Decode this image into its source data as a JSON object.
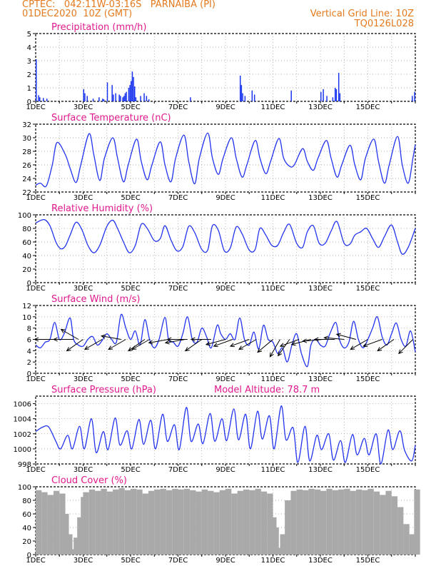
{
  "header": {
    "line1": "CPTEC:   042:11W-03:16S   PARNAIBA (PI)",
    "line2": "01DEC2020  10Z (GMT)",
    "grid_note": "Vertical Grid Line: 10Z",
    "run_id": "TQ0126L028",
    "model_altitude": "Model Altitude: 78.7  m"
  },
  "colors": {
    "header": "#e37a1e",
    "title": "#e0198c",
    "series": "#2233ee",
    "bar": "#1a35f0",
    "cloud": "#a9a9a9",
    "axis": "#000000",
    "grid": "#9a9a9a"
  },
  "chart_data": [
    {
      "type": "bar",
      "title": "Precipitation (mm/h)",
      "ylim": [
        0,
        5
      ],
      "yticks": [
        0,
        1,
        2,
        3,
        4,
        5
      ],
      "xticks": [
        "1DEC",
        "3DEC",
        "5DEC",
        "7DEC",
        "9DEC",
        "11DEC",
        "13DEC",
        "15DEC"
      ],
      "grid": true,
      "series": [
        {
          "x": [
            0.0,
            0.1,
            0.15,
            0.3,
            0.45,
            2.0,
            2.05,
            2.15,
            2.4,
            2.65,
            2.8,
            2.85,
            3.0,
            3.2,
            3.25,
            3.35,
            3.5,
            3.55,
            3.65,
            3.7,
            3.75,
            3.8,
            3.9,
            3.95,
            4.0,
            4.05,
            4.1,
            4.15,
            4.2,
            4.4,
            4.55,
            4.65,
            4.75,
            6.5,
            8.6,
            8.65,
            8.7,
            8.8,
            9.1,
            9.2,
            10.75,
            12.0,
            12.1,
            12.25,
            12.5,
            12.6,
            12.65,
            12.75,
            12.8,
            15.85,
            15.95
          ],
          "values": [
            3.1,
            0.45,
            0.3,
            0.25,
            0.2,
            0.9,
            0.6,
            0.4,
            0.2,
            0.3,
            0.2,
            0.15,
            1.4,
            1.2,
            0.5,
            0.6,
            0.5,
            0.4,
            0.3,
            0.4,
            0.6,
            0.7,
            1.0,
            1.2,
            1.5,
            2.2,
            1.8,
            1.1,
            0.3,
            0.4,
            0.6,
            0.4,
            0.15,
            0.3,
            1.9,
            1.2,
            0.6,
            0.4,
            0.8,
            0.5,
            0.8,
            0.7,
            0.9,
            0.4,
            0.3,
            1.0,
            0.9,
            2.1,
            0.6,
            0.4,
            0.7
          ]
        }
      ]
    },
    {
      "type": "line",
      "title": "Surface Temperature (nC)",
      "ylim": [
        22,
        32
      ],
      "yticks": [
        22,
        24,
        26,
        28,
        30,
        32
      ],
      "xticks": [
        "1DEC",
        "3DEC",
        "5DEC",
        "7DEC",
        "9DEC",
        "11DEC",
        "13DEC",
        "15DEC"
      ],
      "grid": true,
      "series": [
        {
          "x": [
            0.0,
            0.2,
            0.45,
            0.7,
            0.9,
            1.25,
            1.45,
            1.7,
            1.9,
            2.25,
            2.45,
            2.7,
            2.9,
            3.25,
            3.45,
            3.7,
            3.9,
            4.25,
            4.45,
            4.7,
            4.9,
            5.25,
            5.45,
            5.7,
            5.9,
            6.25,
            6.45,
            6.7,
            6.9,
            7.25,
            7.45,
            7.7,
            7.9,
            8.25,
            8.45,
            8.7,
            8.9,
            9.25,
            9.45,
            9.7,
            9.9,
            10.25,
            10.45,
            10.7,
            10.9,
            11.25,
            11.45,
            11.7,
            11.9,
            12.25,
            12.45,
            12.7,
            12.9,
            13.25,
            13.45,
            13.7,
            13.9,
            14.25,
            14.45,
            14.7,
            14.9,
            15.25,
            15.45,
            15.7,
            15.9,
            16.0
          ],
          "values": [
            23.0,
            23.3,
            22.9,
            26.0,
            29.3,
            27.5,
            25.5,
            23.4,
            26.0,
            30.6,
            27.5,
            23.7,
            27.0,
            30.0,
            27.0,
            23.5,
            26.0,
            29.8,
            26.5,
            23.8,
            26.0,
            29.4,
            26.0,
            23.5,
            27.0,
            30.4,
            26.5,
            23.2,
            27.0,
            30.7,
            27.0,
            24.6,
            27.0,
            30.0,
            27.0,
            24.2,
            26.0,
            29.6,
            27.0,
            24.7,
            26.5,
            29.9,
            27.0,
            25.8,
            26.0,
            28.4,
            26.5,
            25.2,
            27.0,
            29.6,
            27.0,
            24.2,
            26.0,
            28.9,
            26.0,
            23.8,
            27.0,
            29.8,
            26.5,
            23.3,
            26.0,
            30.2,
            26.0,
            23.3,
            27.0,
            29.0
          ]
        }
      ]
    },
    {
      "type": "line",
      "title": "Relative Humidity (%)",
      "ylim": [
        0,
        100
      ],
      "yticks": [
        0,
        20,
        40,
        60,
        80,
        100
      ],
      "xticks": [
        "1DEC",
        "3DEC",
        "5DEC",
        "7DEC",
        "9DEC",
        "11DEC",
        "13DEC",
        "15DEC"
      ],
      "grid": true,
      "series": [
        {
          "x": [
            0.0,
            0.35,
            0.6,
            0.85,
            1.05,
            1.25,
            1.45,
            1.7,
            1.95,
            2.2,
            2.45,
            2.7,
            3.0,
            3.25,
            3.45,
            3.7,
            3.95,
            4.2,
            4.45,
            4.7,
            5.0,
            5.25,
            5.45,
            5.7,
            5.95,
            6.2,
            6.45,
            6.7,
            7.0,
            7.25,
            7.45,
            7.7,
            7.95,
            8.2,
            8.45,
            8.7,
            9.0,
            9.25,
            9.45,
            9.7,
            9.95,
            10.2,
            10.45,
            10.7,
            11.0,
            11.25,
            11.45,
            11.7,
            11.95,
            12.2,
            12.45,
            12.7,
            13.0,
            13.25,
            13.45,
            13.7,
            13.95,
            14.2,
            14.45,
            14.7,
            15.0,
            15.25,
            15.45,
            15.7,
            16.0
          ],
          "values": [
            88,
            93,
            84,
            60,
            50,
            54,
            70,
            89,
            78,
            55,
            44,
            55,
            83,
            92,
            80,
            60,
            44,
            55,
            86,
            80,
            62,
            65,
            84,
            63,
            47,
            53,
            83,
            74,
            49,
            48,
            84,
            77,
            47,
            51,
            82,
            72,
            48,
            49,
            80,
            70,
            55,
            55,
            74,
            86,
            58,
            52,
            75,
            84,
            58,
            58,
            76,
            90,
            58,
            57,
            70,
            75,
            80,
            65,
            52,
            68,
            85,
            60,
            42,
            52,
            80
          ]
        }
      ]
    },
    {
      "type": "line",
      "title": "Surface Wind (m/s)",
      "ylim": [
        0,
        12
      ],
      "yticks": [
        0,
        2,
        4,
        6,
        8,
        10,
        12
      ],
      "xticks": [
        "1DEC",
        "3DEC",
        "5DEC",
        "7DEC",
        "9DEC",
        "11DEC",
        "13DEC",
        "15DEC"
      ],
      "grid": true,
      "series": [
        {
          "x": [
            0.0,
            0.2,
            0.4,
            0.6,
            0.8,
            1.0,
            1.2,
            1.45,
            1.6,
            1.8,
            2.0,
            2.2,
            2.4,
            2.6,
            2.8,
            3.0,
            3.2,
            3.4,
            3.6,
            3.8,
            4.0,
            4.2,
            4.4,
            4.6,
            4.8,
            5.0,
            5.2,
            5.45,
            5.6,
            5.8,
            6.0,
            6.2,
            6.4,
            6.6,
            6.8,
            7.0,
            7.2,
            7.4,
            7.65,
            7.8,
            8.0,
            8.2,
            8.4,
            8.6,
            8.8,
            9.0,
            9.2,
            9.4,
            9.6,
            9.8,
            10.0,
            10.2,
            10.4,
            10.6,
            10.8,
            11.0,
            11.2,
            11.45,
            11.6,
            11.8,
            12.0,
            12.2,
            12.4,
            12.65,
            12.8,
            13.0,
            13.2,
            13.4,
            13.6,
            13.8,
            14.0,
            14.2,
            14.4,
            14.6,
            14.8,
            15.0,
            15.2,
            15.4,
            15.6,
            15.8,
            16.0
          ],
          "values": [
            5.0,
            4.5,
            5.5,
            6.0,
            9.0,
            6.0,
            7.0,
            9.8,
            6.0,
            5.0,
            4.8,
            6.0,
            6.5,
            5.0,
            5.8,
            7.0,
            6.0,
            5.5,
            10.4,
            8.0,
            6.0,
            7.5,
            5.0,
            9.5,
            6.0,
            4.5,
            6.0,
            9.9,
            6.0,
            5.5,
            4.8,
            7.0,
            10.0,
            6.0,
            5.5,
            8.0,
            6.5,
            4.5,
            8.5,
            7.0,
            6.0,
            7.0,
            6.0,
            9.8,
            6.0,
            5.0,
            7.3,
            4.3,
            8.5,
            6.0,
            5.5,
            3.5,
            4.5,
            2.0,
            5.0,
            7.0,
            3.5,
            1.2,
            5.0,
            6.0,
            5.0,
            4.8,
            7.0,
            9.0,
            6.0,
            4.5,
            5.5,
            9.2,
            6.0,
            4.5,
            6.0,
            8.0,
            10.0,
            6.5,
            5.0,
            7.0,
            8.9,
            6.0,
            4.8,
            7.5,
            3.8
          ]
        }
      ],
      "wind_vectors": [
        {
          "x": 0.8,
          "dir": 180
        },
        {
          "x": 1.6,
          "dir": 180
        },
        {
          "x": 1.8,
          "dir": 150
        },
        {
          "x": 2.0,
          "dir": 215
        },
        {
          "x": 2.8,
          "dir": 210
        },
        {
          "x": 3.6,
          "dir": 170
        },
        {
          "x": 3.8,
          "dir": 210
        },
        {
          "x": 4.6,
          "dir": 215
        },
        {
          "x": 4.8,
          "dir": 210
        },
        {
          "x": 5.6,
          "dir": 190
        },
        {
          "x": 6.3,
          "dir": 190
        },
        {
          "x": 6.4,
          "dir": 180
        },
        {
          "x": 7.0,
          "dir": 215
        },
        {
          "x": 7.4,
          "dir": 180
        },
        {
          "x": 8.0,
          "dir": 195
        },
        {
          "x": 8.3,
          "dir": 200
        },
        {
          "x": 9.0,
          "dir": 200
        },
        {
          "x": 9.3,
          "dir": 210
        },
        {
          "x": 10.0,
          "dir": 220
        },
        {
          "x": 10.3,
          "dir": 240
        },
        {
          "x": 10.7,
          "dir": 235
        },
        {
          "x": 11.1,
          "dir": 200
        },
        {
          "x": 11.6,
          "dir": 195
        },
        {
          "x": 12.1,
          "dir": 185
        },
        {
          "x": 12.6,
          "dir": 180
        },
        {
          "x": 13.0,
          "dir": 175
        },
        {
          "x": 13.5,
          "dir": 165
        },
        {
          "x": 14.0,
          "dir": 210
        },
        {
          "x": 14.6,
          "dir": 200
        },
        {
          "x": 15.1,
          "dir": 215
        },
        {
          "x": 15.9,
          "dir": 225
        }
      ]
    },
    {
      "type": "line",
      "title": "Surface Pressure (hPa)",
      "ylim": [
        998,
        1007
      ],
      "yticks": [
        998,
        1000,
        1002,
        1004,
        1006
      ],
      "xticks": [
        "1DEC",
        "3DEC",
        "5DEC",
        "7DEC",
        "9DEC",
        "11DEC",
        "13DEC",
        "15DEC"
      ],
      "grid": true,
      "series": [
        {
          "x": [
            0.0,
            0.3,
            0.55,
            0.85,
            1.05,
            1.35,
            1.55,
            1.85,
            2.05,
            2.35,
            2.55,
            2.85,
            3.05,
            3.35,
            3.55,
            3.85,
            4.05,
            4.35,
            4.55,
            4.85,
            5.05,
            5.35,
            5.55,
            5.85,
            6.05,
            6.35,
            6.55,
            6.85,
            7.05,
            7.35,
            7.55,
            7.85,
            8.05,
            8.35,
            8.55,
            8.85,
            9.05,
            9.35,
            9.55,
            9.85,
            10.05,
            10.35,
            10.55,
            10.85,
            11.05,
            11.35,
            11.55,
            11.85,
            12.05,
            12.35,
            12.55,
            12.85,
            13.05,
            13.35,
            13.55,
            13.85,
            14.05,
            14.35,
            14.55,
            14.85,
            15.05,
            15.35,
            15.55,
            15.85,
            16.0
          ],
          "values": [
            1002.3,
            1002.9,
            1002.9,
            1001.0,
            1000.0,
            1001.8,
            1000.0,
            1003.0,
            1000.0,
            1004.0,
            999.5,
            1002.3,
            999.9,
            1004.1,
            1000.5,
            1002.4,
            1000.0,
            1003.9,
            1000.6,
            1003.8,
            1000.0,
            1004.6,
            1001.0,
            1003.2,
            999.9,
            1005.5,
            1001.0,
            1003.3,
            1000.7,
            1004.7,
            1001.0,
            1004.0,
            1001.1,
            1005.3,
            1001.2,
            1004.6,
            1000.0,
            1005.0,
            1001.3,
            1004.4,
            1000.0,
            1005.7,
            1001.2,
            1002.8,
            998.2,
            1003.0,
            998.4,
            1001.8,
            999.9,
            1002.0,
            998.5,
            1001.1,
            998.2,
            1001.9,
            999.2,
            1001.4,
            999.2,
            1002.0,
            998.0,
            1002.5,
            999.9,
            1002.4,
            999.8,
            998.4,
            1000.5
          ]
        }
      ]
    },
    {
      "type": "bar",
      "title": "Cloud Cover (%)",
      "ylim": [
        0,
        100
      ],
      "yticks": [
        0,
        20,
        40,
        60,
        80,
        100
      ],
      "xticks": [
        "1DEC",
        "3DEC",
        "5DEC",
        "7DEC",
        "9DEC",
        "11DEC",
        "13DEC",
        "15DEC"
      ],
      "grid": true,
      "series": [
        {
          "x": [
            0.0,
            0.25,
            0.5,
            0.75,
            1.0,
            1.15,
            1.3,
            1.45,
            1.6,
            1.75,
            1.9,
            2.0,
            2.25,
            2.5,
            2.75,
            3.0,
            3.25,
            3.5,
            3.75,
            4.0,
            4.25,
            4.5,
            4.75,
            5.0,
            5.25,
            5.5,
            5.75,
            6.0,
            6.25,
            6.5,
            6.75,
            7.0,
            7.25,
            7.5,
            7.75,
            8.0,
            8.25,
            8.5,
            8.75,
            9.0,
            9.25,
            9.5,
            9.75,
            9.9,
            10.0,
            10.1,
            10.2,
            10.3,
            10.5,
            10.75,
            11.0,
            11.25,
            11.5,
            11.75,
            12.0,
            12.25,
            12.5,
            12.75,
            13.0,
            13.25,
            13.5,
            13.75,
            14.0,
            14.25,
            14.5,
            14.75,
            15.0,
            15.25,
            15.5,
            15.75,
            15.95
          ],
          "values": [
            95,
            92,
            88,
            94,
            90,
            60,
            30,
            8,
            25,
            55,
            85,
            92,
            96,
            94,
            97,
            93,
            96,
            98,
            95,
            97,
            96,
            90,
            94,
            96,
            97,
            95,
            97,
            96,
            97,
            95,
            93,
            96,
            94,
            92,
            95,
            97,
            90,
            94,
            96,
            95,
            97,
            93,
            90,
            55,
            40,
            10,
            5,
            30,
            80,
            94,
            96,
            95,
            97,
            96,
            94,
            97,
            95,
            96,
            97,
            94,
            96,
            95,
            97,
            93,
            88,
            94,
            86,
            70,
            45,
            30,
            96
          ]
        }
      ]
    }
  ]
}
